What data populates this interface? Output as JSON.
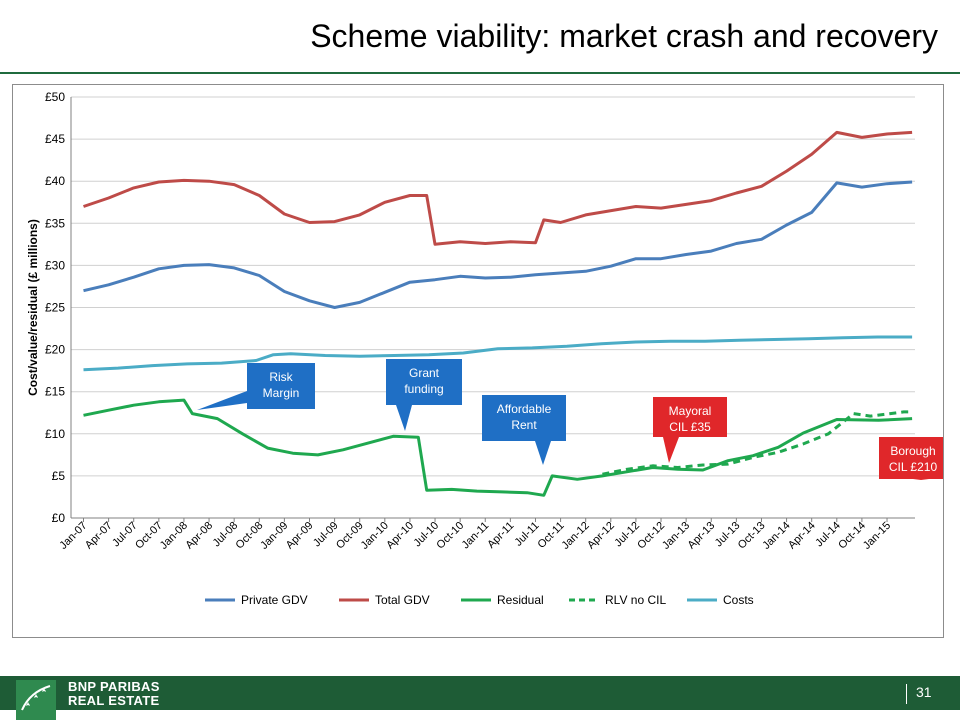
{
  "page": {
    "title": "Scheme viability: market crash and recovery",
    "brand_line1": "BNP PARIBAS",
    "brand_line2": "REAL ESTATE",
    "page_number": "31"
  },
  "colors": {
    "private_gdv": "#4a7ebb",
    "total_gdv": "#be4b48",
    "residual": "#1fa84f",
    "costs": "#4bacc6",
    "callout_blue": "#1f6fc5",
    "callout_red": "#e0272a",
    "footer_green": "#1e5c36"
  },
  "chart_data": {
    "type": "line",
    "title": "",
    "ylabel": "Cost/value/residual (£ millions)",
    "xlabel": "",
    "ylim": [
      0,
      50
    ],
    "yticks": [
      "£0",
      "£5",
      "£10",
      "£15",
      "£20",
      "£25",
      "£30",
      "£35",
      "£40",
      "£45",
      "£50"
    ],
    "grid": true,
    "legend_position": "bottom",
    "x_tick_labels": [
      "Jan-07",
      "Apr-07",
      "Jul-07",
      "Oct-07",
      "Jan-08",
      "Apr-08",
      "Jul-08",
      "Oct-08",
      "Jan-09",
      "Apr-09",
      "Jul-09",
      "Oct-09",
      "Jan-10",
      "Apr-10",
      "Jul-10",
      "Oct-10",
      "Jan-11",
      "Apr-11",
      "Jul-11",
      "Oct-11",
      "Jan-12",
      "Apr-12",
      "Jul-12",
      "Oct-12",
      "Jan-13",
      "Apr-13",
      "Jul-13",
      "Oct-13",
      "Jan-14",
      "Apr-14",
      "Jul-14",
      "Oct-14",
      "Jan-15"
    ],
    "series": [
      {
        "name": "Private GDV",
        "color": "#4a7ebb",
        "dashed": false,
        "values": [
          27.0,
          27.7,
          28.6,
          29.6,
          30.0,
          30.1,
          29.7,
          28.8,
          26.9,
          25.8,
          25.0,
          25.6,
          26.8,
          28.0,
          28.3,
          28.7,
          28.5,
          28.6,
          28.9,
          29.1,
          29.3,
          29.9,
          30.8,
          30.8,
          31.3,
          31.7,
          32.6,
          33.1,
          34.8,
          36.3,
          39.8,
          39.3,
          39.7,
          39.9
        ],
        "point_months": [
          0,
          3,
          6,
          9,
          12,
          15,
          18,
          21,
          24,
          27,
          30,
          33,
          36,
          39,
          42,
          45,
          48,
          51,
          54,
          57,
          60,
          63,
          66,
          69,
          72,
          75,
          78,
          81,
          84,
          87,
          90,
          93,
          96,
          99
        ]
      },
      {
        "name": "Total GDV",
        "color": "#be4b48",
        "dashed": false,
        "values": [
          37.0,
          38.0,
          39.2,
          39.9,
          40.1,
          40.0,
          39.6,
          38.3,
          36.1,
          35.1,
          35.2,
          36.0,
          37.5,
          38.3,
          38.3,
          32.5,
          32.8,
          32.6,
          32.8,
          32.7,
          35.4,
          35.1,
          36.0,
          37.0,
          36.8,
          37.7,
          38.6,
          39.4,
          41.2,
          43.2,
          45.8,
          45.2,
          45.6,
          45.8
        ],
        "point_months": [
          0,
          3,
          6,
          9,
          12,
          15,
          18,
          21,
          24,
          27,
          30,
          33,
          36,
          39,
          41,
          42,
          45,
          48,
          51,
          54,
          55,
          57,
          60,
          66,
          69,
          75,
          78,
          81,
          84,
          87,
          90,
          93,
          96,
          99
        ]
      },
      {
        "name": "Residual",
        "color": "#1fa84f",
        "dashed": false,
        "values": [
          12.2,
          12.8,
          13.4,
          13.8,
          14.0,
          12.4,
          11.8,
          10.0,
          8.3,
          7.7,
          7.5,
          8.1,
          8.9,
          9.7,
          9.6,
          3.3,
          3.4,
          3.2,
          3.1,
          3.0,
          2.7,
          5.0,
          4.6,
          5.0,
          5.5,
          6.0,
          5.8,
          5.7,
          6.8,
          7.4,
          8.4,
          10.1,
          11.7,
          11.6,
          11.8
        ],
        "point_months": [
          0,
          3,
          6,
          9,
          12,
          13,
          16,
          19,
          22,
          25,
          28,
          31,
          34,
          37,
          40,
          41,
          44,
          47,
          50,
          53,
          55,
          56,
          59,
          62,
          65,
          68,
          71,
          74,
          77,
          80,
          83,
          86,
          90,
          95,
          99
        ]
      },
      {
        "name": "RLV no CIL",
        "color": "#1fa84f",
        "dashed": true,
        "values": [
          5.2,
          5.8,
          6.2,
          6.0,
          6.3,
          6.4,
          7.2,
          7.8,
          8.8,
          10.0,
          12.4,
          12.1,
          12.6,
          12.6
        ],
        "point_months": [
          62,
          65,
          68,
          71,
          74,
          77,
          80,
          83,
          86,
          89,
          92,
          94,
          98,
          99
        ]
      },
      {
        "name": "Costs",
        "color": "#4bacc6",
        "dashed": false,
        "values": [
          17.6,
          17.8,
          18.1,
          18.3,
          18.4,
          18.7,
          19.4,
          19.5,
          19.3,
          19.2,
          19.3,
          19.4,
          19.6,
          20.1,
          20.2,
          20.4,
          20.7,
          20.9,
          21.0,
          21.0,
          21.1,
          21.2,
          21.3,
          21.4,
          21.5,
          21.5
        ],
        "point_months": [
          0,
          6,
          12,
          18,
          24,
          30,
          33,
          36,
          42,
          48,
          54,
          60,
          66,
          72,
          78,
          84,
          90,
          96,
          102,
          108,
          114,
          120,
          126,
          132,
          138,
          144
        ]
      }
    ],
    "annotations": [
      {
        "text": [
          "Risk",
          "Margin"
        ],
        "color": "#1f6fc5"
      },
      {
        "text": [
          "Grant",
          "funding"
        ],
        "color": "#1f6fc5"
      },
      {
        "text": [
          "Affordable",
          "Rent"
        ],
        "color": "#1f6fc5"
      },
      {
        "text": [
          "Mayoral",
          "CIL £35"
        ],
        "color": "#e0272a"
      },
      {
        "text": [
          "Borough",
          "CIL £210"
        ],
        "color": "#e0272a"
      }
    ]
  }
}
